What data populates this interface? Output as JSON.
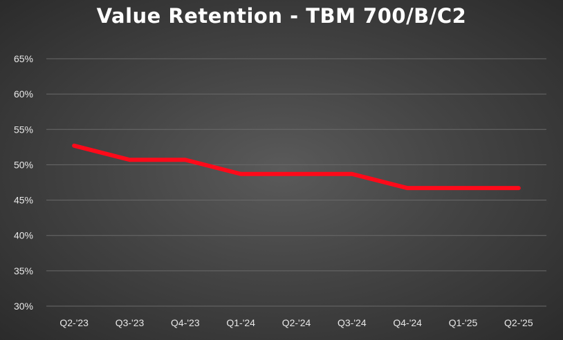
{
  "chart_data": {
    "type": "line",
    "title": "Value Retention - TBM 700/B/C2",
    "xlabel": "",
    "ylabel": "",
    "categories": [
      "Q2-'23",
      "Q3-'23",
      "Q4-'23",
      "Q1-'24",
      "Q2-'24",
      "Q3-'24",
      "Q4-'24",
      "Q1-'25",
      "Q2-'25"
    ],
    "series": [
      {
        "values": [
          52.7,
          50.7,
          50.7,
          48.7,
          48.7,
          48.7,
          46.7,
          46.7,
          46.7
        ],
        "color": "#ff0a1a"
      }
    ],
    "ylim": [
      30,
      65
    ],
    "yticks": [
      "30%",
      "35%",
      "40%",
      "45%",
      "50%",
      "55%",
      "60%",
      "65%"
    ],
    "ytick_values": [
      30,
      35,
      40,
      45,
      50,
      55,
      60,
      65
    ],
    "grid": true,
    "legend": "none",
    "background": "#454545"
  }
}
